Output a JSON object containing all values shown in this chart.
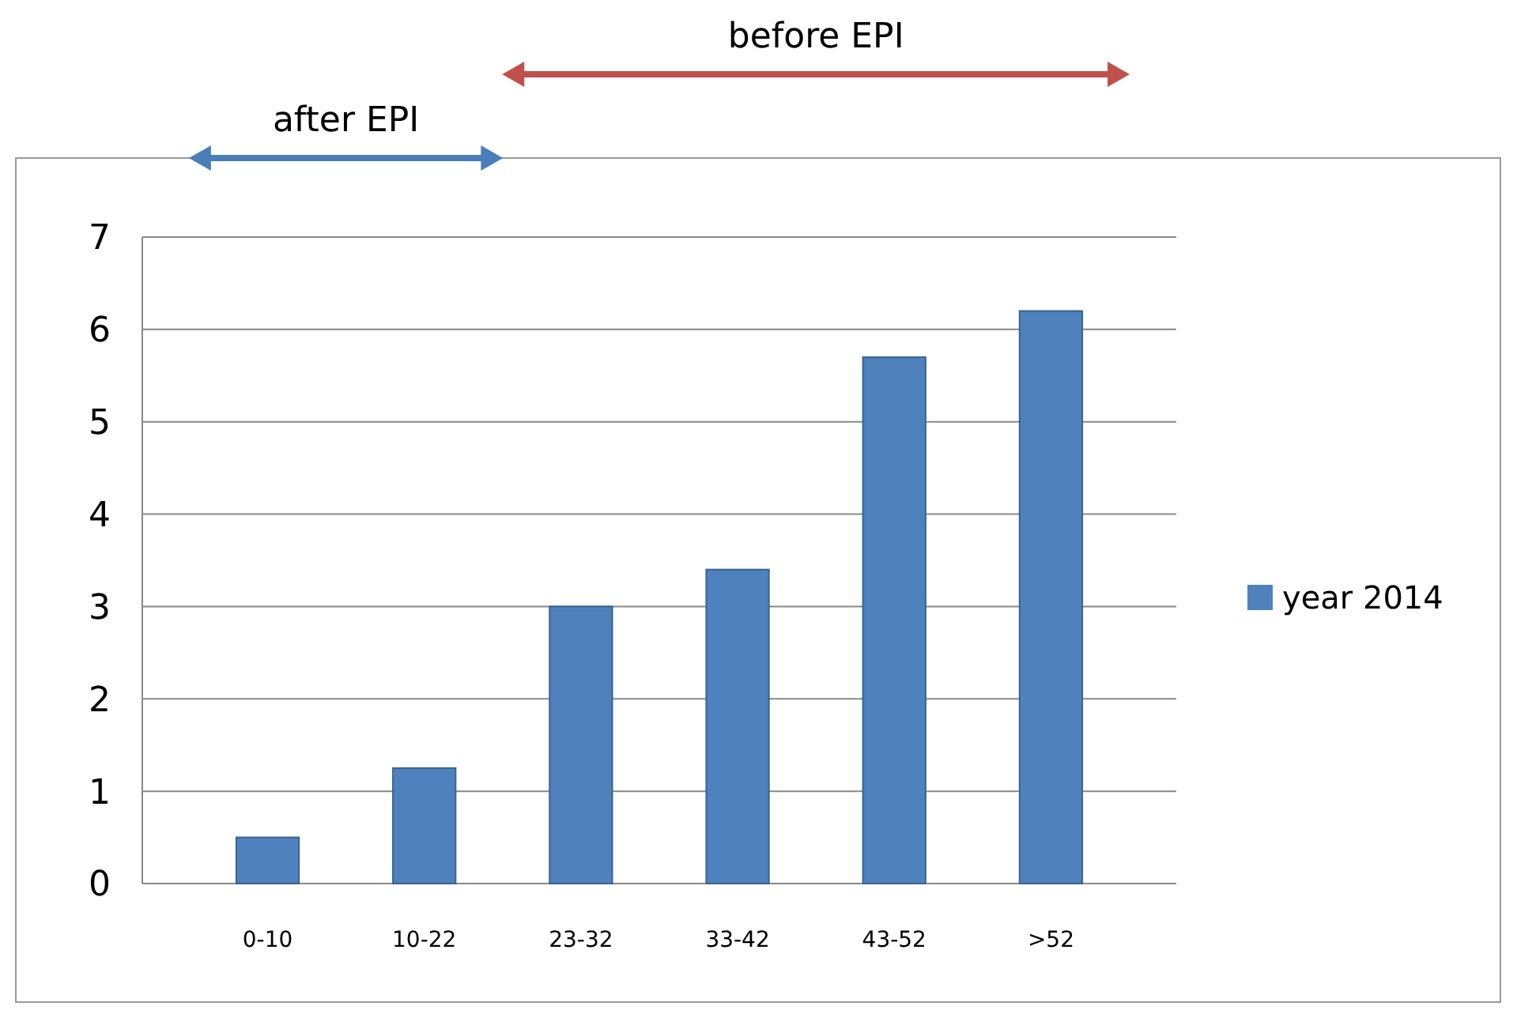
{
  "chart_data": {
    "type": "bar",
    "categories": [
      "0-10",
      "10-22",
      "23-32",
      "33-42",
      "43-52",
      ">52"
    ],
    "series": [
      {
        "name": "year 2014",
        "color": "#4f81bd",
        "values": [
          0.5,
          1.25,
          3.0,
          3.4,
          5.7,
          6.2
        ]
      }
    ],
    "ylim": [
      0,
      7
    ],
    "yticks": [
      0,
      1,
      2,
      3,
      4,
      5,
      6,
      7
    ],
    "grid": "y",
    "legend": "right",
    "annotations": [
      "after EPI",
      "before EPI"
    ]
  }
}
